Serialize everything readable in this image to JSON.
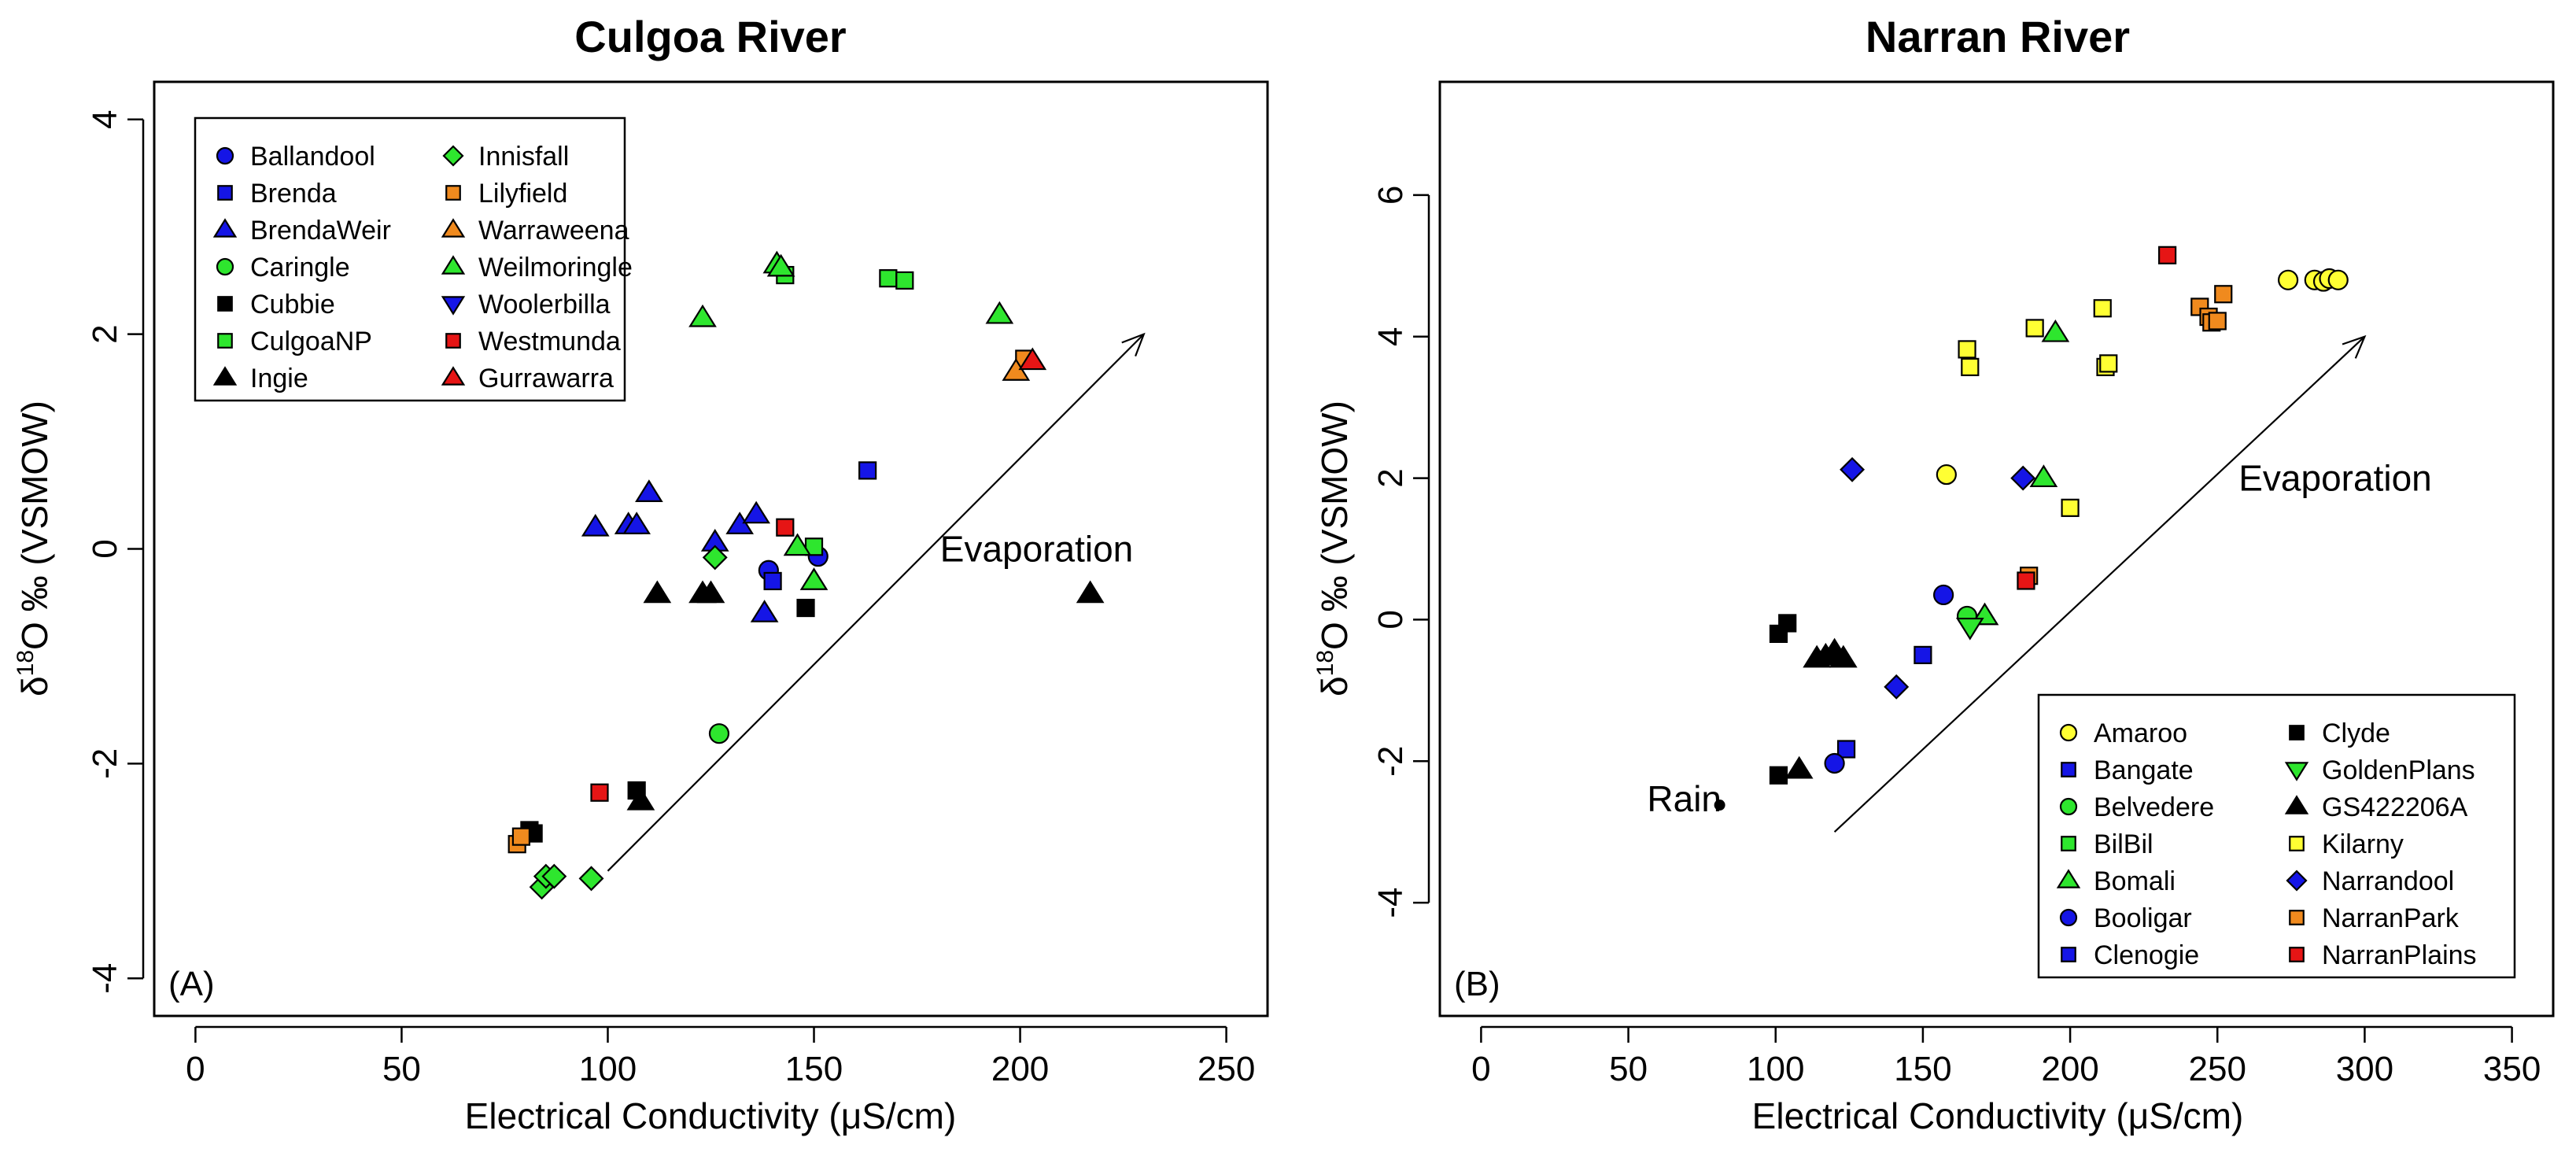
{
  "figure": {
    "title_suffix_unicode": "‰",
    "mu": "μ"
  },
  "chart_data": [
    {
      "type": "scatter",
      "panel": "A",
      "title": "Culgoa River",
      "panel_label": "(A)",
      "xlabel": "Electrical Conductivity (μS/cm)",
      "ylabel": "δ18O ‰ (VSMOW)",
      "ylabel_parts": {
        "delta": "δ",
        "sup": "18",
        "rest": "O ‰ (VSMOW)"
      },
      "xlim": [
        -10,
        260
      ],
      "ylim": [
        -4.35,
        4.35
      ],
      "xticks": [
        0,
        50,
        100,
        150,
        200,
        250
      ],
      "yticks": [
        -4,
        -2,
        0,
        2,
        4
      ],
      "xtick_labels": [
        "0",
        "50",
        "100",
        "150",
        "200",
        "250"
      ],
      "ytick_labels": [
        "-4",
        "-2",
        "0",
        "2",
        "4"
      ],
      "arrow": {
        "from": [
          100,
          -3.0
        ],
        "to": [
          230,
          2.0
        ]
      },
      "annotations": [
        {
          "text": "Evaporation",
          "x": 204,
          "y": 0.0
        }
      ],
      "legend_position": "top-left",
      "series": [
        {
          "name": "Ballandool",
          "marker": "circle",
          "color": "#1515e6",
          "points": [
            [
              139,
              -0.2
            ],
            [
              151,
              -0.07
            ]
          ]
        },
        {
          "name": "Brenda",
          "marker": "square",
          "color": "#1515e6",
          "points": [
            [
              140,
              -0.3
            ],
            [
              163,
              0.73
            ]
          ]
        },
        {
          "name": "BrendaWeir",
          "marker": "triangle",
          "color": "#1515e6",
          "points": [
            [
              97,
              0.2
            ],
            [
              105,
              0.22
            ],
            [
              107,
              0.22
            ],
            [
              110,
              0.52
            ],
            [
              126,
              0.06
            ],
            [
              132,
              0.22
            ],
            [
              136,
              0.32
            ],
            [
              138,
              -0.6
            ]
          ]
        },
        {
          "name": "Caringle",
          "marker": "circle",
          "color": "#2ee62e",
          "points": [
            [
              127,
              -1.72
            ]
          ]
        },
        {
          "name": "Cubbie",
          "marker": "square",
          "color": "#000000",
          "points": [
            [
              81,
              -2.62
            ],
            [
              82,
              -2.65
            ],
            [
              107,
              -2.25
            ],
            [
              148,
              -0.55
            ]
          ]
        },
        {
          "name": "CulgoaNP",
          "marker": "square",
          "color": "#2ee62e",
          "points": [
            [
              143,
              2.55
            ],
            [
              150,
              0.02
            ],
            [
              168,
              2.52
            ],
            [
              172,
              2.5
            ]
          ]
        },
        {
          "name": "Ingie",
          "marker": "triangle",
          "color": "#000000",
          "points": [
            [
              108,
              -2.35
            ],
            [
              112,
              -0.42
            ],
            [
              123,
              -0.42
            ],
            [
              125,
              -0.42
            ],
            [
              217,
              -0.42
            ]
          ]
        },
        {
          "name": "Innisfall",
          "marker": "diamond",
          "color": "#2ee62e",
          "points": [
            [
              84,
              -3.15
            ],
            [
              85,
              -3.05
            ],
            [
              87,
              -3.05
            ],
            [
              96,
              -3.07
            ],
            [
              126,
              -0.08
            ]
          ]
        },
        {
          "name": "Lilyfield",
          "marker": "square",
          "color": "#f08a1e",
          "points": [
            [
              78,
              -2.75
            ],
            [
              79,
              -2.68
            ],
            [
              201,
              1.77
            ]
          ]
        },
        {
          "name": "Warraweena",
          "marker": "triangle",
          "color": "#f08a1e",
          "points": [
            [
              199,
              1.65
            ]
          ]
        },
        {
          "name": "Weilmoringle",
          "marker": "triangle",
          "color": "#2ee62e",
          "points": [
            [
              123,
              2.15
            ],
            [
              141,
              2.65
            ],
            [
              142,
              2.62
            ],
            [
              146,
              0.02
            ],
            [
              150,
              -0.3
            ],
            [
              195,
              2.18
            ]
          ]
        },
        {
          "name": "Woolerbilla",
          "marker": "triangle-down",
          "color": "#1515e6",
          "points": []
        },
        {
          "name": "Westmunda",
          "marker": "square",
          "color": "#e61515",
          "points": [
            [
              98,
              -2.27
            ],
            [
              143,
              0.2
            ]
          ]
        },
        {
          "name": "Gurrawarra",
          "marker": "triangle",
          "color": "#e61515",
          "points": [
            [
              203,
              1.75
            ]
          ]
        }
      ]
    },
    {
      "type": "scatter",
      "panel": "B",
      "title": "Narran River",
      "panel_label": "(B)",
      "xlabel": "Electrical Conductivity (μS/cm)",
      "ylabel": "δ18O ‰ (VSMOW)",
      "ylabel_parts": {
        "delta": "δ",
        "sup": "18",
        "rest": "O ‰ (VSMOW)"
      },
      "xlim": [
        -14,
        364
      ],
      "ylim": [
        -5.6,
        7.6
      ],
      "xticks": [
        0,
        50,
        100,
        150,
        200,
        250,
        300,
        350
      ],
      "yticks": [
        -4,
        -2,
        0,
        2,
        4,
        6
      ],
      "xtick_labels": [
        "0",
        "50",
        "100",
        "150",
        "200",
        "250",
        "300",
        "350"
      ],
      "ytick_labels": [
        "-4",
        "-2",
        "0",
        "2",
        "4",
        "6"
      ],
      "arrow": {
        "from": [
          120,
          -3.0
        ],
        "to": [
          300,
          4.0
        ]
      },
      "annotations": [
        {
          "text": "Evaporation",
          "x": 290,
          "y": 2.0
        },
        {
          "text": "Rain",
          "x": 69,
          "y": -2.53
        }
      ],
      "rain_point": [
        81,
        -2.62
      ],
      "legend_position": "bottom-right",
      "series": [
        {
          "name": "Amaroo",
          "marker": "circle",
          "color": "#ffff33",
          "points": [
            [
              158,
              2.05
            ],
            [
              274,
              4.8
            ],
            [
              283,
              4.8
            ],
            [
              286,
              4.78
            ],
            [
              288,
              4.82
            ],
            [
              291,
              4.8
            ]
          ]
        },
        {
          "name": "Bangate",
          "marker": "square",
          "color": "#1515e6",
          "points": [
            [
              124,
              -1.83
            ],
            [
              150,
              -0.5
            ]
          ]
        },
        {
          "name": "Belvedere",
          "marker": "circle",
          "color": "#2ee62e",
          "points": [
            [
              165,
              0.05
            ]
          ]
        },
        {
          "name": "BilBil",
          "marker": "square",
          "color": "#2ee62e",
          "points": []
        },
        {
          "name": "Bomali",
          "marker": "triangle",
          "color": "#2ee62e",
          "points": [
            [
              171,
              0.05
            ],
            [
              191,
              2.0
            ],
            [
              195,
              4.05
            ]
          ]
        },
        {
          "name": "Booligar",
          "marker": "circle",
          "color": "#1515e6",
          "points": [
            [
              120,
              -2.03
            ],
            [
              157,
              0.35
            ]
          ]
        },
        {
          "name": "Clenogie",
          "marker": "square",
          "color": "#1515e6",
          "points": []
        },
        {
          "name": "Clyde",
          "marker": "square",
          "color": "#000000",
          "points": [
            [
              101,
              -2.2
            ],
            [
              101,
              -0.2
            ],
            [
              104,
              -0.05
            ]
          ]
        },
        {
          "name": "GoldenPlans",
          "marker": "triangle-down",
          "color": "#2ee62e",
          "points": [
            [
              166,
              -0.1
            ]
          ]
        },
        {
          "name": "GS422206A",
          "marker": "triangle",
          "color": "#000000",
          "points": [
            [
              108,
              -2.12
            ],
            [
              114,
              -0.55
            ],
            [
              117,
              -0.52
            ],
            [
              120,
              -0.45
            ],
            [
              123,
              -0.55
            ]
          ]
        },
        {
          "name": "Kilarny",
          "marker": "square",
          "color": "#ffff33",
          "points": [
            [
              165,
              3.82
            ],
            [
              166,
              3.57
            ],
            [
              188,
              4.12
            ],
            [
              211,
              4.4
            ],
            [
              212,
              3.57
            ],
            [
              213,
              3.62
            ],
            [
              200,
              1.58
            ]
          ]
        },
        {
          "name": "Narrandool",
          "marker": "diamond",
          "color": "#1515e6",
          "points": [
            [
              126,
              2.12
            ],
            [
              141,
              -0.95
            ],
            [
              184,
              2.0
            ]
          ]
        },
        {
          "name": "NarranPark",
          "marker": "square",
          "color": "#f08a1e",
          "points": [
            [
              186,
              0.62
            ],
            [
              244,
              4.42
            ],
            [
              247,
              4.28
            ],
            [
              248,
              4.2
            ],
            [
              250,
              4.22
            ],
            [
              252,
              4.6
            ]
          ]
        },
        {
          "name": "NarranPlains",
          "marker": "square",
          "color": "#e61515",
          "points": [
            [
              185,
              0.55
            ],
            [
              233,
              5.15
            ]
          ]
        }
      ]
    }
  ]
}
